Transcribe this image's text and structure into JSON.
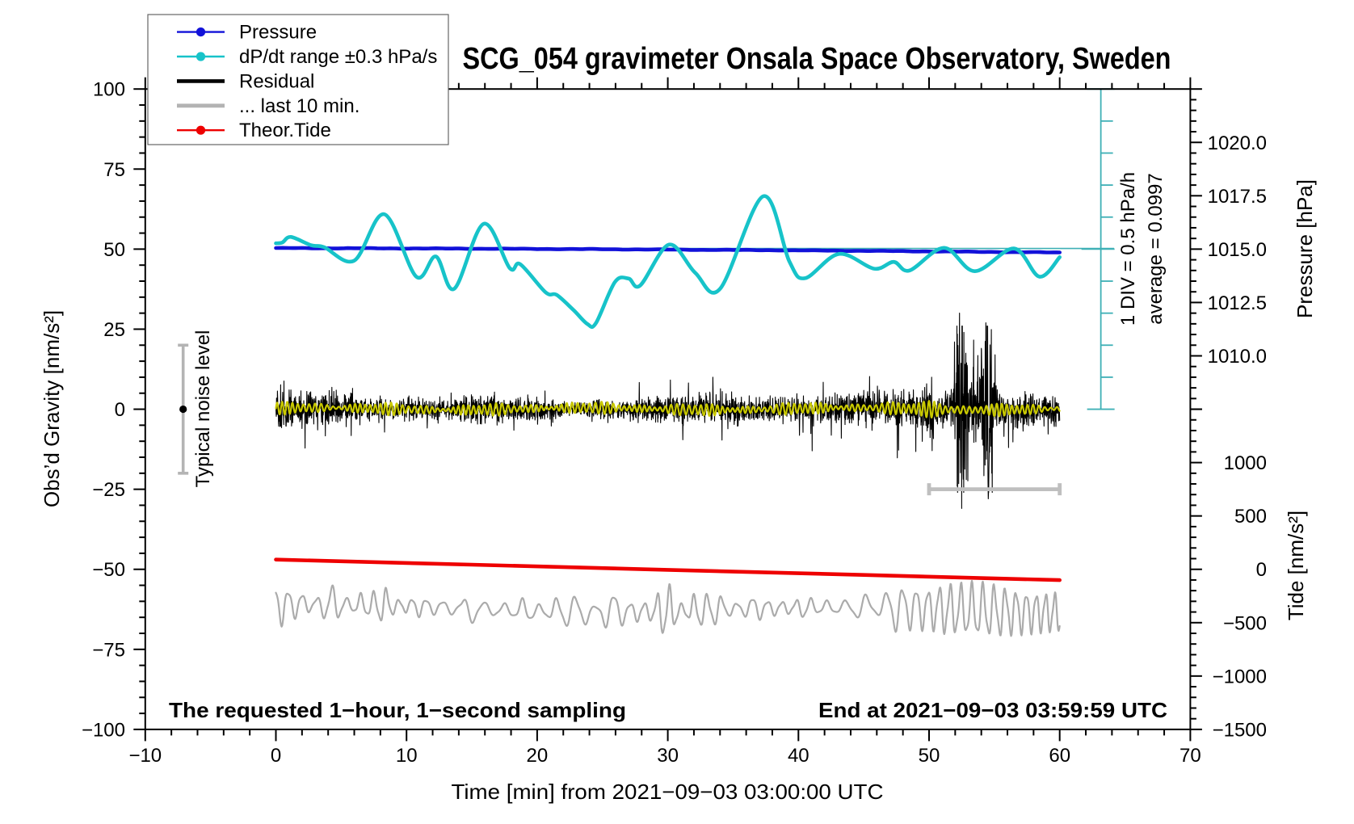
{
  "figure": {
    "title": "SCG_054 gravimeter Onsala Space Observatory, Sweden",
    "background_color": "#ffffff"
  },
  "chart_data": {
    "type": "line",
    "title": "SCG_054 gravimeter Onsala Space Observatory, Sweden",
    "xlabel": "Time [min] from 2021−09−03 03:00:00 UTC",
    "ylabel_left": "Obs’d Gravity [nm/s²]",
    "ylabel_right_pressure": "Pressure [hPa]",
    "ylabel_right_tide": "Tide [nm/s²]",
    "annotation_left": "The requested 1−hour, 1−second sampling",
    "annotation_right": "End at 2021−09−03 03:59:59 UTC",
    "grid": false,
    "legend_position": "top-left",
    "x_axis": {
      "range": [
        -10,
        70
      ],
      "major_tick_step": 10,
      "minor_tick_step": 2,
      "major_ticks": [
        -10,
        0,
        10,
        20,
        30,
        40,
        50,
        60,
        70
      ],
      "tick_labels": [
        "−10",
        "0",
        "10",
        "20",
        "30",
        "40",
        "50",
        "60",
        "70"
      ]
    },
    "y_left_axis": {
      "range": [
        -100,
        100
      ],
      "major_tick_step": 25,
      "minor_tick_step": 5,
      "major_ticks": [
        -100,
        -75,
        -50,
        -25,
        0,
        25,
        50,
        75,
        100
      ],
      "tick_labels": [
        "−100",
        "−75",
        "−50",
        "−25",
        "0",
        "25",
        "50",
        "75",
        "100"
      ]
    },
    "pressure_axis": {
      "comment": "right axis, upper half: maps to gravity-axis range [0,100]",
      "range_hPa": [
        1007.5,
        1022.5
      ],
      "gravity_span": [
        0,
        100
      ],
      "major_tick_step_hPa": 2.5,
      "minor_tick_step_hPa": 0.5,
      "labeled_ticks_hPa": [
        1020.0,
        1017.5,
        1015.0,
        1012.5,
        1010.0
      ],
      "tick_labels": [
        "1020.0",
        "1017.5",
        "1015.0",
        "1012.5",
        "1010.0"
      ]
    },
    "tide_axis": {
      "comment": "right axis, lower half: maps to gravity-axis range [-100,0]",
      "range_nms2": [
        -1500,
        1500
      ],
      "gravity_span": [
        -100,
        0
      ],
      "major_tick_step": 500,
      "minor_tick_step": 100,
      "labeled_ticks": [
        1000,
        500,
        0,
        -500,
        -1000,
        -1500
      ],
      "tick_labels": [
        "1000",
        "500",
        "0",
        "−500",
        "−1000",
        "−1500"
      ]
    },
    "legend": [
      {
        "label": "Pressure",
        "color": "#1212d9",
        "line_width": 2.4,
        "marker": "circle"
      },
      {
        "label": "dP/dt range ±0.3 hPa/s",
        "color": "#17c3c9",
        "line_width": 2.4,
        "marker": "circle"
      },
      {
        "label": "Residual",
        "color": "#000000",
        "line_width": 4.6,
        "marker": "none"
      },
      {
        "label": "... last 10 min.",
        "color": "#b3b3b3",
        "line_width": 4.8,
        "marker": "none"
      },
      {
        "label": "Theor.Tide",
        "color": "#ee0000",
        "line_width": 2.4,
        "marker": "circle"
      }
    ],
    "noise_level_marker": {
      "label": "Typical noise level",
      "time_min": -7.1,
      "gravity_center": 0,
      "gravity_half_range": 20,
      "bar_color": "#b4b4b4",
      "dot_color": "#000000"
    },
    "div_scale": {
      "label_div": "1 DIV = 0.5 hPa/h",
      "label_average": "average = 0.0997",
      "time_min": 63.15,
      "gravity_top": 100,
      "gravity_bottom": 0,
      "tick_step_gravity": 10,
      "average_line_gravity": 50.2,
      "color": "#3fb0b6"
    },
    "last10_window_bar": {
      "time_start_min": 50,
      "time_end_min": 60,
      "gravity": -25,
      "color": "#bfbfbf"
    },
    "series": {
      "pressure": {
        "name": "Pressure",
        "axis": "pressure",
        "units": "hPa",
        "color": "#1212d9",
        "line_width": 4.6,
        "x_min": [
          0,
          5,
          10,
          15,
          20,
          25,
          30,
          35,
          40,
          45,
          50,
          55,
          60
        ],
        "values_hPa": [
          1015.048,
          1015.041,
          1015.032,
          1015.021,
          1015.009,
          1014.995,
          1014.978,
          1014.96,
          1014.94,
          1014.918,
          1014.894,
          1014.868,
          1014.841
        ]
      },
      "dpdt": {
        "name": "dP/dt range ±0.3 hPa/s",
        "axis": "gravity",
        "comment": "keypoints [t_min, gravity_units]; 10 gravity units = 1 DIV = 0.5 hPa/h; average 0.0997 hPa/h at gravity 50.2",
        "color": "#17c3c9",
        "line_width": 4.6,
        "keypoints": [
          [
            0,
            51.8
          ],
          [
            0.5,
            52.1
          ],
          [
            1.15,
            53.8
          ],
          [
            2.7,
            51.2
          ],
          [
            3.7,
            50.6
          ],
          [
            6.0,
            46.4
          ],
          [
            8.3,
            60.9
          ],
          [
            10.75,
            41.4
          ],
          [
            12.25,
            47.7
          ],
          [
            13.65,
            37.6
          ],
          [
            15.9,
            57.9
          ],
          [
            17.9,
            44.1
          ],
          [
            18.7,
            45.3
          ],
          [
            20.65,
            36.5
          ],
          [
            21.5,
            35.7
          ],
          [
            22.8,
            30.9
          ],
          [
            23.85,
            26.6
          ],
          [
            24.5,
            26.9
          ],
          [
            25.95,
            39.7
          ],
          [
            27.0,
            40.8
          ],
          [
            27.9,
            38.7
          ],
          [
            30.1,
            51.4
          ],
          [
            32.1,
            42.6
          ],
          [
            34.0,
            37.6
          ],
          [
            37.3,
            66.5
          ],
          [
            39.3,
            46.2
          ],
          [
            40.5,
            40.9
          ],
          [
            43.1,
            48.5
          ],
          [
            45.8,
            43.9
          ],
          [
            47.3,
            46.0
          ],
          [
            48.5,
            43.3
          ],
          [
            51.15,
            50.4
          ],
          [
            53.5,
            43.1
          ],
          [
            56.5,
            50.2
          ],
          [
            58.45,
            41.4
          ],
          [
            60.0,
            47.5
          ]
        ]
      },
      "residual": {
        "name": "Residual",
        "axis": "gravity",
        "units": "nm/s2",
        "color": "#000000",
        "line_width": 1.1,
        "sampling_seconds": 1,
        "time_span_min": [
          0,
          60
        ],
        "synthetic": true,
        "base_envelope": 2.45,
        "burst1": {
          "center_min": 52.45,
          "sigma_min": 0.38,
          "gain": 9.5,
          "peak_pos": 30,
          "peak_neg": -31
        },
        "burst2": {
          "center_min": 54.45,
          "sigma_min": 0.42,
          "gain": 7.0,
          "peak_pos": 27,
          "peak_neg": -28
        },
        "extra_spikes": [
          [
            41.05,
            -13
          ],
          [
            33.45,
            10
          ],
          [
            50.2,
            10
          ]
        ]
      },
      "residual_filtered": {
        "name": "filtered residual (yellow overlay)",
        "axis": "gravity",
        "color": "#c9c900",
        "line_width": 2.2,
        "center": 0.1,
        "amplitude": 1.2,
        "period_min": 0.42,
        "time_span_min": [
          0,
          60
        ],
        "synthetic": true
      },
      "last10": {
        "name": "... last 10 min.",
        "axis": "gravity",
        "color": "#ababab",
        "line_width": 2.2,
        "center": -62.3,
        "amplitude_range": [
          2.5,
          7.5
        ],
        "period_min": 0.9,
        "time_span_min": [
          0,
          60
        ],
        "synthetic": true
      },
      "theor_tide": {
        "name": "Theor.Tide",
        "axis": "tide",
        "units": "nm/s2",
        "color": "#ee0000",
        "line_width": 4.6,
        "x_min": [
          0,
          15,
          30,
          45,
          60
        ],
        "values_nms2": [
          91,
          43,
          -5,
          -53,
          -101
        ]
      }
    }
  }
}
